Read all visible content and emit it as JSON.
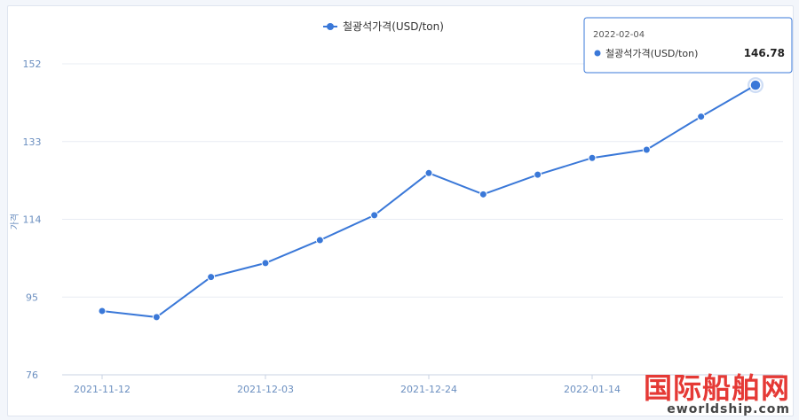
{
  "chart_data": {
    "type": "line",
    "legend": "철광석가격(USD/ton)",
    "legend_position": "top-center",
    "ylabel": "가격",
    "ylim": [
      76,
      152
    ],
    "yticks": [
      76,
      95,
      114,
      133,
      152
    ],
    "xtick_labels": [
      "2021-11-12",
      "2021-12-03",
      "2021-12-24",
      "2022-01-14"
    ],
    "grid": true,
    "series": [
      {
        "name": "철광석가격(USD/ton)",
        "color": "#3a78d8",
        "x": [
          "2021-11-12",
          "2021-11-19",
          "2021-11-26",
          "2021-12-03",
          "2021-12-10",
          "2021-12-17",
          "2021-12-24",
          "2021-12-31",
          "2022-01-07",
          "2022-01-14",
          "2022-01-21",
          "2022-01-28",
          "2022-02-04"
        ],
        "values": [
          91.6,
          90.1,
          99.9,
          103.3,
          108.9,
          115.0,
          125.3,
          120.1,
          124.9,
          129.0,
          131.0,
          139.1,
          146.78
        ]
      }
    ],
    "tooltip": {
      "date": "2022-02-04",
      "series": "철광석가격(USD/ton)",
      "value": "146.78"
    }
  },
  "watermark": {
    "title": "国际船舶网",
    "url": "eworldship.com"
  }
}
